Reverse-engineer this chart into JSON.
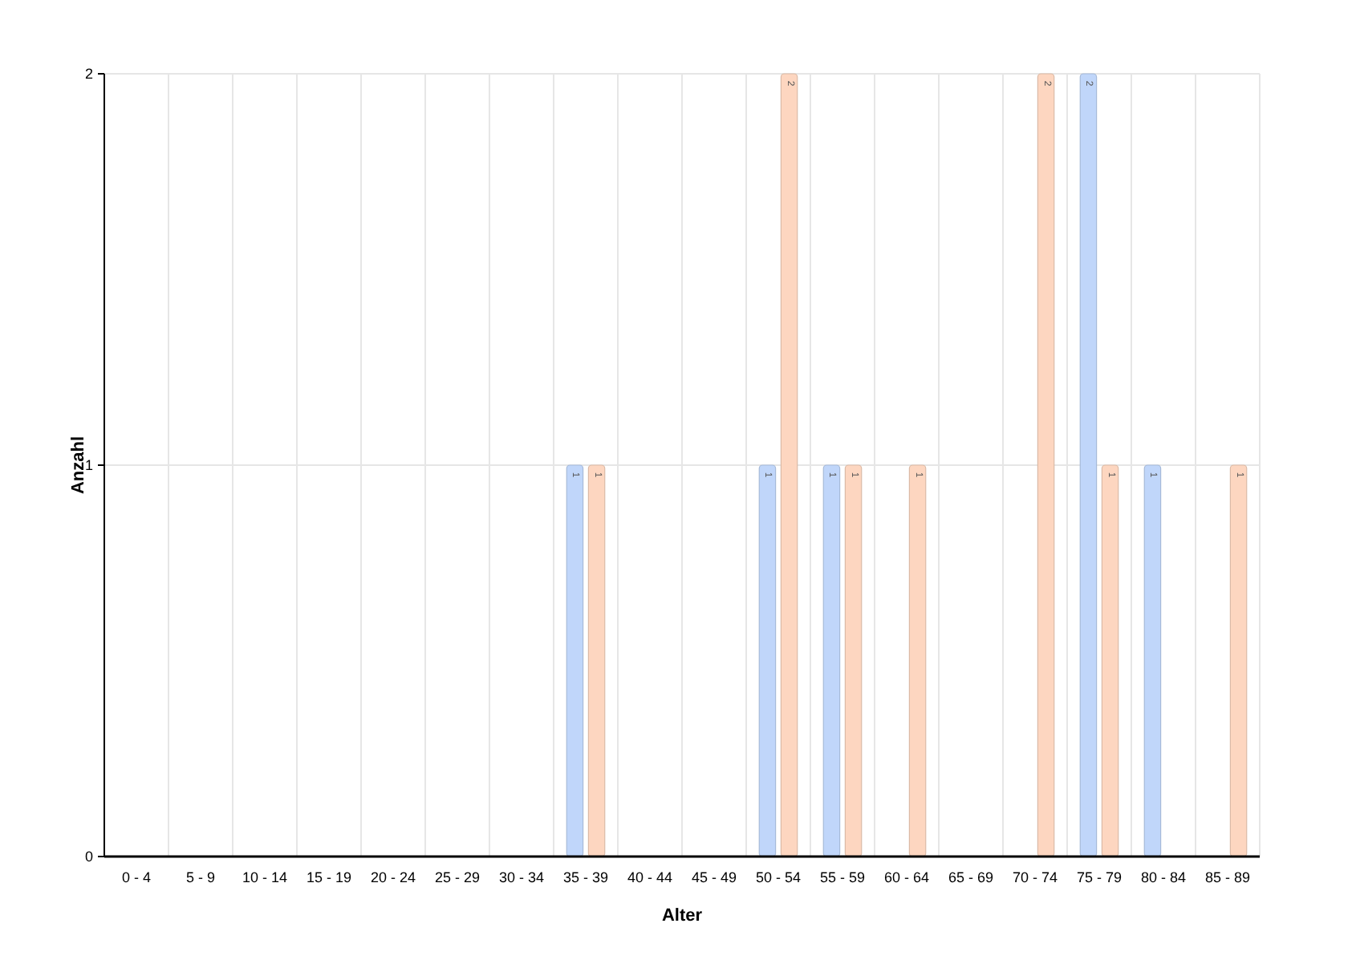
{
  "chart_data": {
    "type": "bar",
    "xlabel": "Alter",
    "ylabel": "Anzahl",
    "categories": [
      "0 - 4",
      "5 - 9",
      "10 - 14",
      "15 - 19",
      "20 - 24",
      "25 - 29",
      "30 - 34",
      "35 - 39",
      "40 - 44",
      "45 - 49",
      "50 - 54",
      "55 - 59",
      "60 - 64",
      "65 - 69",
      "70 - 74",
      "75 - 79",
      "80 - 84",
      "85 - 89"
    ],
    "series": [
      {
        "color": "#c0d6fa",
        "values": [
          0,
          0,
          0,
          0,
          0,
          0,
          0,
          1,
          0,
          0,
          1,
          1,
          0,
          0,
          0,
          2,
          1,
          0
        ],
        "value_labels": [
          null,
          null,
          null,
          null,
          null,
          null,
          null,
          "1",
          null,
          null,
          "1",
          "1",
          null,
          null,
          null,
          "2",
          "1",
          null
        ]
      },
      {
        "color": "#fdd6c0",
        "values": [
          0,
          0,
          0,
          0,
          0,
          0,
          0,
          1,
          0,
          0,
          2,
          1,
          1,
          0,
          2,
          1,
          0,
          1
        ],
        "value_labels": [
          null,
          null,
          null,
          null,
          null,
          null,
          null,
          "1",
          null,
          null,
          "2",
          "1",
          "1",
          null,
          "2",
          "1",
          null,
          "1"
        ]
      }
    ],
    "ylim": [
      0,
      2
    ],
    "yticks": [
      0,
      1,
      2
    ],
    "grid": true
  }
}
